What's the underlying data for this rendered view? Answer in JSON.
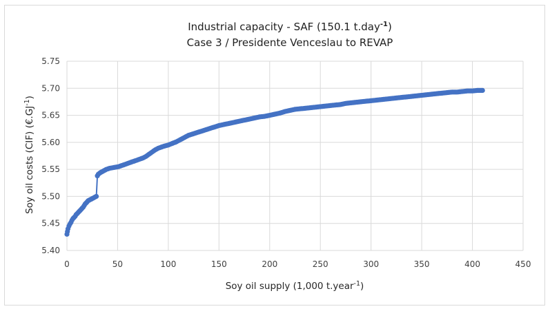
{
  "chart_data": {
    "type": "scatter",
    "title_line1": "Industrial capacity - SAF (150.1 t.day",
    "title_line1_sup": "-1",
    "title_line1_end": ")",
    "title_line2": "Case 3 / Presidente Venceslau to REVAP",
    "xlabel": "Soy oil supply (1,000 t.year",
    "xlabel_sup": "-1",
    "xlabel_end": ")",
    "ylabel": "Soy oil costs (CIF) (€.GJ",
    "ylabel_sup": "-1",
    "ylabel_end": ")",
    "xlim": [
      0,
      450
    ],
    "ylim": [
      5.4,
      5.75
    ],
    "x_ticks": [
      "0",
      "50",
      "100",
      "150",
      "200",
      "250",
      "300",
      "350",
      "400",
      "450"
    ],
    "y_ticks": [
      "5.40",
      "5.45",
      "5.50",
      "5.55",
      "5.60",
      "5.65",
      "5.70",
      "5.75"
    ],
    "grid": true,
    "marker_color": "#4472c4",
    "series": [
      {
        "points": [
          [
            0,
            5.43
          ],
          [
            0.5,
            5.435
          ],
          [
            1,
            5.44
          ],
          [
            2,
            5.445
          ],
          [
            3,
            5.449
          ],
          [
            4,
            5.452
          ],
          [
            5,
            5.456
          ],
          [
            6,
            5.459
          ],
          [
            7,
            5.461
          ],
          [
            8,
            5.463
          ],
          [
            9,
            5.466
          ],
          [
            10,
            5.468
          ],
          [
            11,
            5.47
          ],
          [
            12,
            5.472
          ],
          [
            13,
            5.474
          ],
          [
            14,
            5.476
          ],
          [
            15,
            5.478
          ],
          [
            16,
            5.48
          ],
          [
            17,
            5.483
          ],
          [
            18,
            5.486
          ],
          [
            19,
            5.488
          ],
          [
            20,
            5.49
          ],
          [
            21,
            5.492
          ],
          [
            22,
            5.493
          ],
          [
            23,
            5.494
          ],
          [
            24,
            5.495
          ],
          [
            25,
            5.496
          ],
          [
            26,
            5.497
          ],
          [
            27,
            5.498
          ],
          [
            28,
            5.499
          ],
          [
            29,
            5.5
          ],
          [
            30,
            5.538
          ],
          [
            31,
            5.541
          ],
          [
            33,
            5.544
          ],
          [
            35,
            5.546
          ],
          [
            37,
            5.548
          ],
          [
            39,
            5.55
          ],
          [
            42,
            5.552
          ],
          [
            45,
            5.553
          ],
          [
            48,
            5.554
          ],
          [
            51,
            5.555
          ],
          [
            54,
            5.557
          ],
          [
            57,
            5.559
          ],
          [
            60,
            5.561
          ],
          [
            63,
            5.563
          ],
          [
            66,
            5.565
          ],
          [
            69,
            5.567
          ],
          [
            72,
            5.569
          ],
          [
            75,
            5.571
          ],
          [
            78,
            5.574
          ],
          [
            81,
            5.578
          ],
          [
            84,
            5.582
          ],
          [
            87,
            5.586
          ],
          [
            90,
            5.589
          ],
          [
            93,
            5.591
          ],
          [
            96,
            5.593
          ],
          [
            100,
            5.595
          ],
          [
            104,
            5.598
          ],
          [
            108,
            5.601
          ],
          [
            112,
            5.605
          ],
          [
            116,
            5.609
          ],
          [
            120,
            5.613
          ],
          [
            125,
            5.616
          ],
          [
            130,
            5.619
          ],
          [
            135,
            5.622
          ],
          [
            140,
            5.625
          ],
          [
            145,
            5.628
          ],
          [
            150,
            5.631
          ],
          [
            155,
            5.633
          ],
          [
            160,
            5.635
          ],
          [
            165,
            5.637
          ],
          [
            170,
            5.639
          ],
          [
            175,
            5.641
          ],
          [
            180,
            5.643
          ],
          [
            185,
            5.645
          ],
          [
            190,
            5.647
          ],
          [
            195,
            5.648
          ],
          [
            200,
            5.65
          ],
          [
            205,
            5.652
          ],
          [
            210,
            5.654
          ],
          [
            215,
            5.657
          ],
          [
            220,
            5.659
          ],
          [
            225,
            5.661
          ],
          [
            230,
            5.662
          ],
          [
            235,
            5.663
          ],
          [
            240,
            5.664
          ],
          [
            245,
            5.665
          ],
          [
            250,
            5.666
          ],
          [
            255,
            5.667
          ],
          [
            260,
            5.668
          ],
          [
            265,
            5.669
          ],
          [
            270,
            5.67
          ],
          [
            275,
            5.672
          ],
          [
            280,
            5.673
          ],
          [
            285,
            5.674
          ],
          [
            290,
            5.675
          ],
          [
            295,
            5.676
          ],
          [
            300,
            5.677
          ],
          [
            305,
            5.678
          ],
          [
            310,
            5.679
          ],
          [
            315,
            5.68
          ],
          [
            320,
            5.681
          ],
          [
            325,
            5.682
          ],
          [
            330,
            5.683
          ],
          [
            335,
            5.684
          ],
          [
            340,
            5.685
          ],
          [
            345,
            5.686
          ],
          [
            350,
            5.687
          ],
          [
            355,
            5.688
          ],
          [
            360,
            5.689
          ],
          [
            365,
            5.69
          ],
          [
            370,
            5.691
          ],
          [
            375,
            5.692
          ],
          [
            380,
            5.693
          ],
          [
            385,
            5.693
          ],
          [
            390,
            5.694
          ],
          [
            395,
            5.695
          ],
          [
            400,
            5.695
          ],
          [
            405,
            5.696
          ],
          [
            410,
            5.696
          ]
        ]
      }
    ]
  }
}
